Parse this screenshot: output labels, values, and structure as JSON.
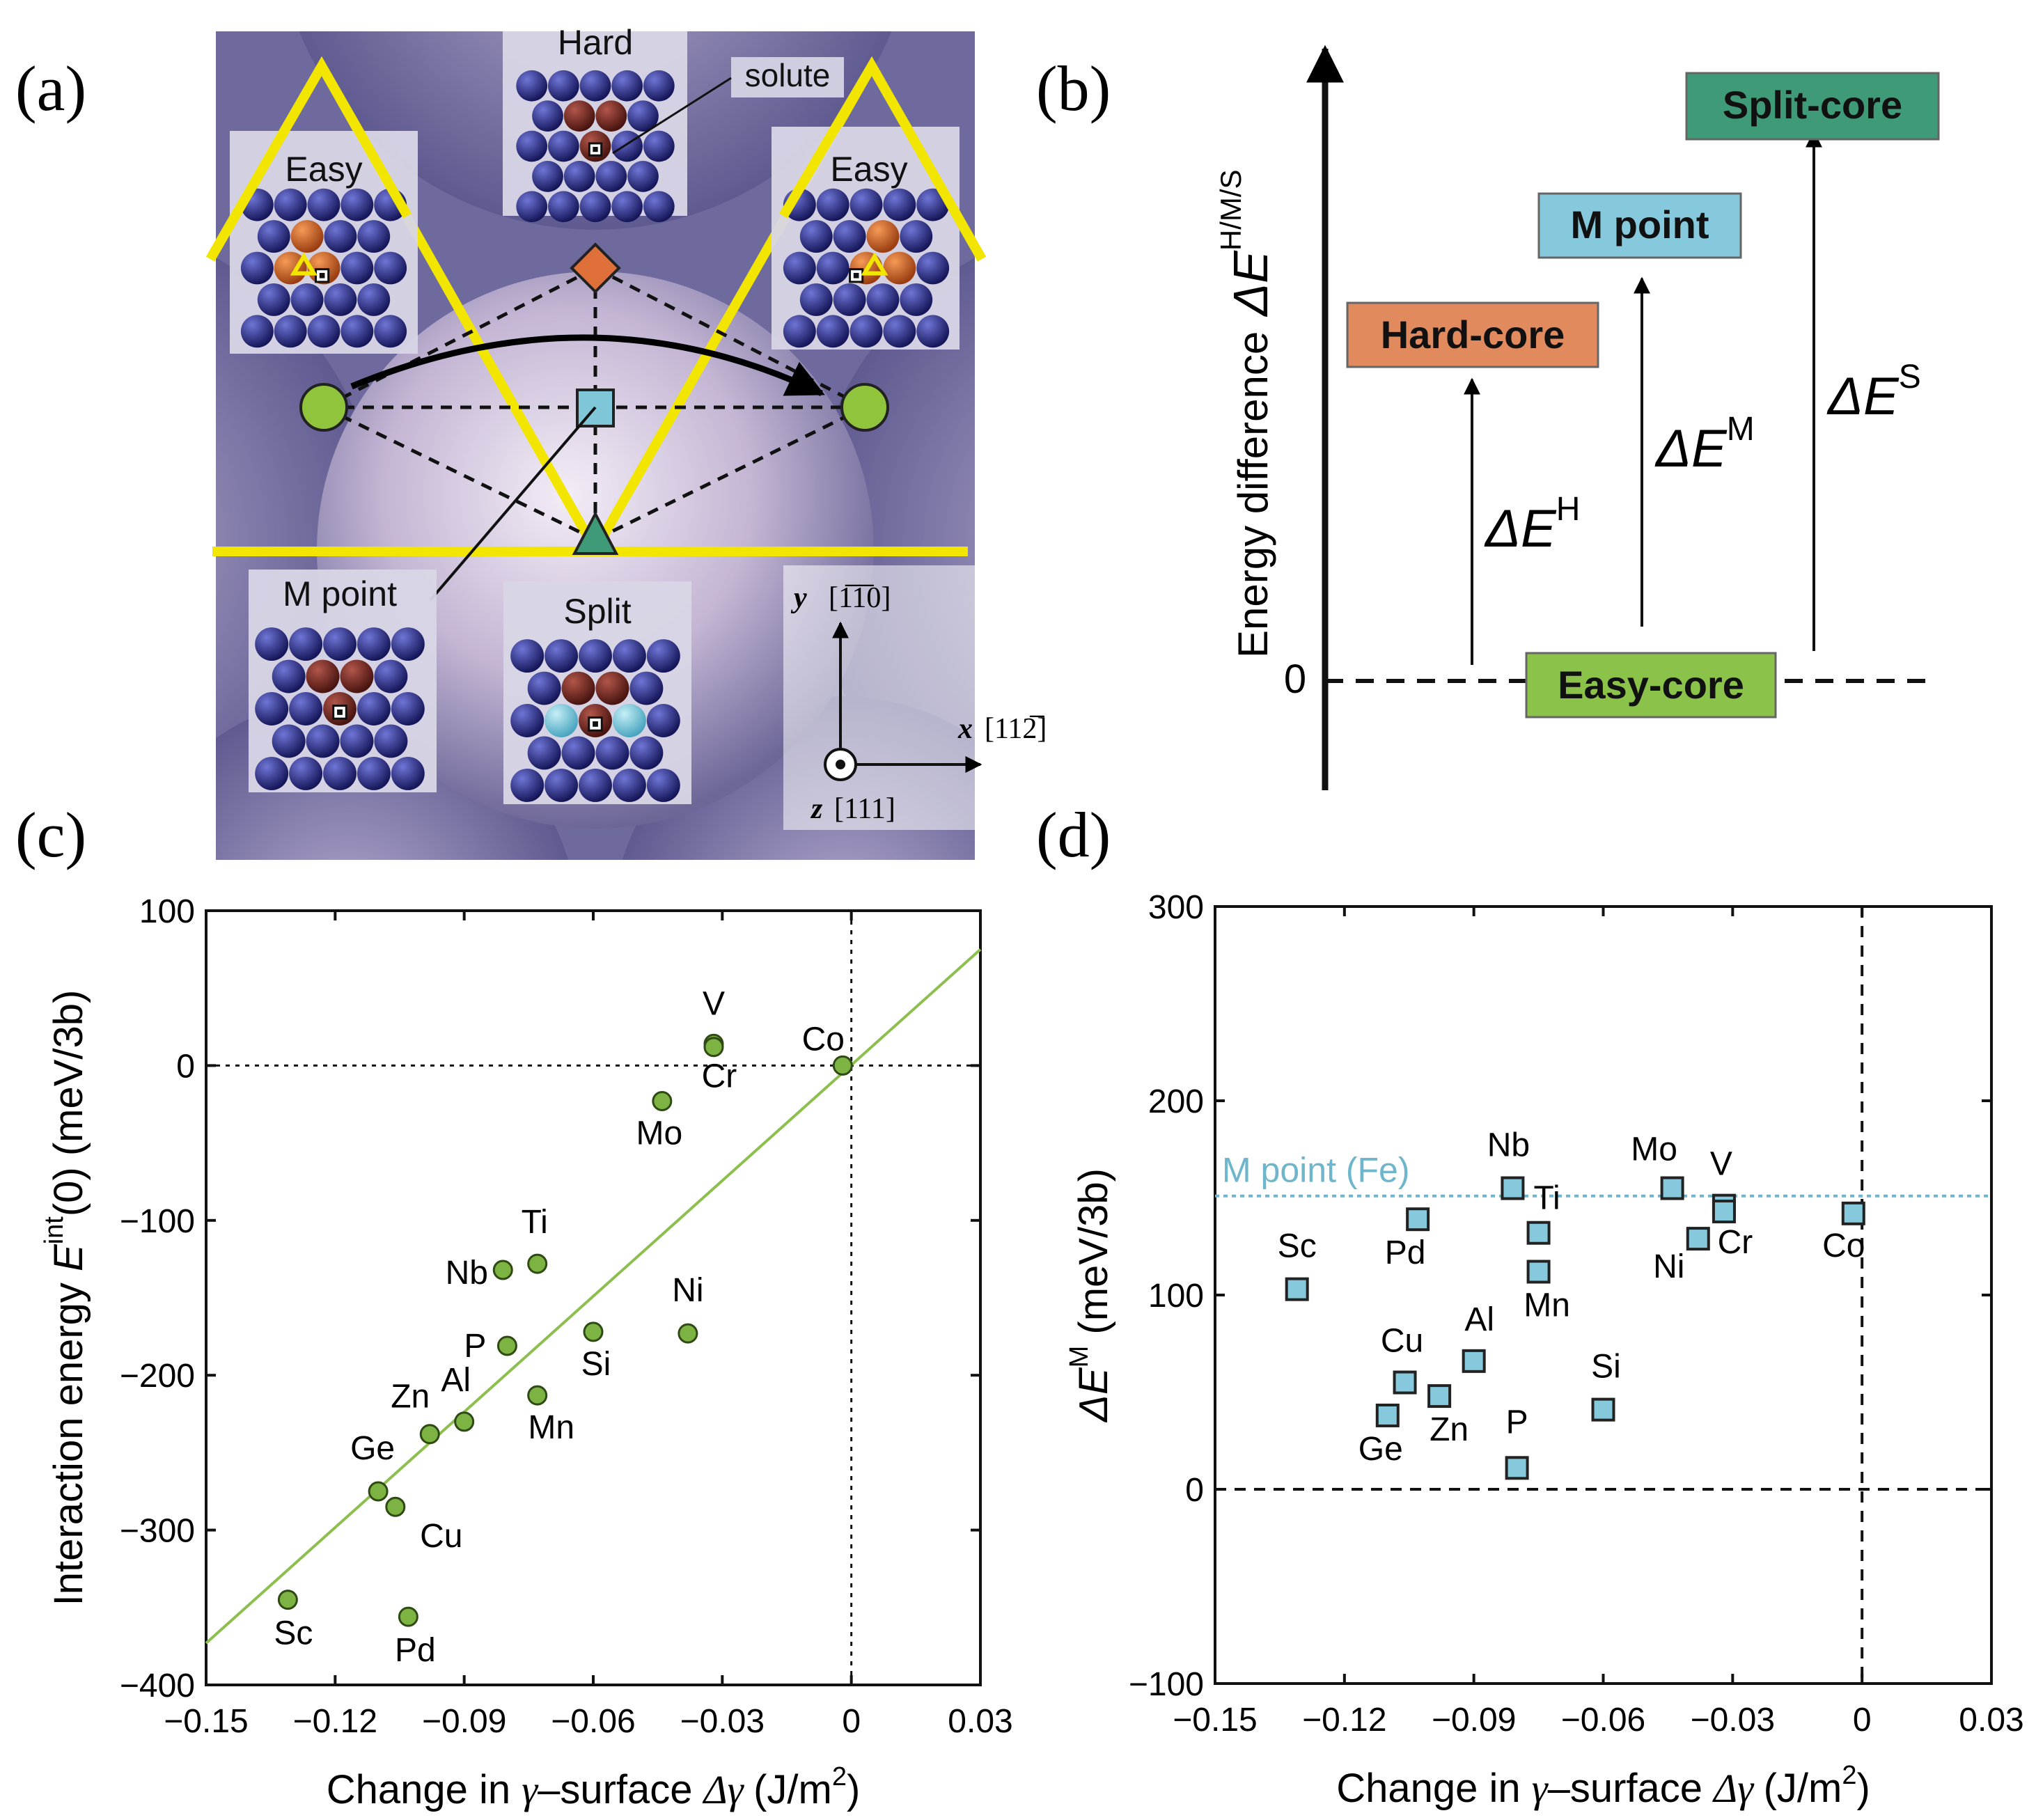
{
  "panel_labels": {
    "a": "(a)",
    "b": "(b)",
    "c": "(c)",
    "d": "(d)"
  },
  "panel_a": {
    "labels": {
      "hard": "Hard",
      "solute": "solute",
      "easy_left": "Easy",
      "easy_right": "Easy",
      "m_point": "M point",
      "split": "Split"
    },
    "axes": {
      "y": "y",
      "y_dir": "[1̅1̅0]",
      "x": "x",
      "x_dir": "[112̅]",
      "z": "z",
      "z_dir": "[111]"
    },
    "colors": {
      "background": "#6f6a9e",
      "yellow_line": "#f2e600",
      "easy_core": "#8fc43c",
      "hard_core": "#e0703a",
      "m_point": "#7ec6d8",
      "split_core": "#3f9a78",
      "atom_blue": "#2e2f86",
      "atom_brown": "#7a2a20",
      "atom_orange": "#d0662a",
      "atom_cyan": "#78cde0"
    }
  },
  "panel_b": {
    "ylabel": "Energy difference",
    "ylabel_symbol": "ΔE",
    "ylabel_sup": "H/M/S",
    "zero": "0",
    "boxes": {
      "split": "Split-core",
      "m_point": "M point",
      "hard": "Hard-core",
      "easy": "Easy-core"
    },
    "arrows": {
      "h": "ΔE",
      "h_sup": "H",
      "m": "ΔE",
      "m_sup": "M",
      "s": "ΔE",
      "s_sup": "S"
    },
    "colors": {
      "split": "#3f9a78",
      "m_point": "#86c8dc",
      "hard": "#e08a5e",
      "easy": "#8bc34a"
    }
  },
  "chart_data": [
    {
      "type": "scatter",
      "panel": "c",
      "xlabel": "Change in γ–surface  Δγ  (J/m²)",
      "ylabel": "Interaction energy  Eⁱⁿᵗ(0)  (meV/3b)",
      "ylabel_main": "Interaction energy",
      "ylabel_sym": "E",
      "ylabel_sup": "int",
      "ylabel_tail": "(0)  (meV/3b)",
      "xlabel_main": "Change in",
      "xlabel_gamma": "γ",
      "xlabel_mid": "–surface",
      "xlabel_dg": "Δγ",
      "xlabel_unit": "(J/m",
      "xlabel_unit_sup": "2",
      "xlabel_unit_end": ")",
      "xlim": [
        -0.15,
        0.03
      ],
      "ylim": [
        -400,
        100
      ],
      "xticks": [
        "−0.15",
        "−0.12",
        "−0.09",
        "−0.06",
        "−0.03",
        "0",
        "0.03"
      ],
      "yticks": [
        "100",
        "0",
        "−100",
        "−200",
        "−300",
        "−400"
      ],
      "marker_color": "#7cb342",
      "line_color": "#8dbf4f",
      "fit_line": {
        "x": [
          -0.15,
          0.03
        ],
        "y": [
          -373,
          75
        ]
      },
      "points": [
        {
          "label": "V",
          "x": -0.032,
          "y": 14
        },
        {
          "label": "Cr",
          "x": -0.032,
          "y": 12
        },
        {
          "label": "Co",
          "x": -0.002,
          "y": 0
        },
        {
          "label": "Mo",
          "x": -0.044,
          "y": -23
        },
        {
          "label": "Ti",
          "x": -0.073,
          "y": -128
        },
        {
          "label": "Nb",
          "x": -0.081,
          "y": -132
        },
        {
          "label": "Ni",
          "x": -0.038,
          "y": -173
        },
        {
          "label": "Si",
          "x": -0.06,
          "y": -172
        },
        {
          "label": "P",
          "x": -0.08,
          "y": -181
        },
        {
          "label": "Mn",
          "x": -0.073,
          "y": -213
        },
        {
          "label": "Al",
          "x": -0.09,
          "y": -230
        },
        {
          "label": "Zn",
          "x": -0.098,
          "y": -238
        },
        {
          "label": "Ge",
          "x": -0.11,
          "y": -275
        },
        {
          "label": "Cu",
          "x": -0.106,
          "y": -285
        },
        {
          "label": "Sc",
          "x": -0.131,
          "y": -345
        },
        {
          "label": "Pd",
          "x": -0.103,
          "y": -356
        }
      ]
    },
    {
      "type": "scatter",
      "panel": "d",
      "xlabel": "Change in γ–surface  Δγ  (J/m²)",
      "ylabel": "ΔEᴹ (meV/3b)",
      "ylabel_sym": "ΔE",
      "ylabel_sup": "M",
      "ylabel_tail": "(meV/3b)",
      "xlabel_main": "Change in",
      "xlabel_gamma": "γ",
      "xlabel_mid": "–surface",
      "xlabel_dg": "Δγ",
      "xlabel_unit": "(J/m",
      "xlabel_unit_sup": "2",
      "xlabel_unit_end": ")",
      "xlim": [
        -0.15,
        0.03
      ],
      "ylim": [
        -100,
        300
      ],
      "xticks": [
        "−0.15",
        "−0.12",
        "−0.09",
        "−0.06",
        "−0.03",
        "0",
        "0.03"
      ],
      "yticks": [
        "300",
        "200",
        "100",
        "0",
        "−100"
      ],
      "marker_color": "#86c8dc",
      "reference_line": {
        "label": "M point (Fe)",
        "y": 151,
        "color": "#6fb6cc"
      },
      "points": [
        {
          "label": "Nb",
          "x": -0.081,
          "y": 155
        },
        {
          "label": "Mo",
          "x": -0.044,
          "y": 155
        },
        {
          "label": "V",
          "x": -0.032,
          "y": 146
        },
        {
          "label": "Cr",
          "x": -0.032,
          "y": 143
        },
        {
          "label": "Ti",
          "x": -0.075,
          "y": 132
        },
        {
          "label": "Ni",
          "x": -0.038,
          "y": 129
        },
        {
          "label": "Co",
          "x": -0.002,
          "y": 142
        },
        {
          "label": "Pd",
          "x": -0.103,
          "y": 139
        },
        {
          "label": "Mn",
          "x": -0.075,
          "y": 112
        },
        {
          "label": "Sc",
          "x": -0.131,
          "y": 103
        },
        {
          "label": "Al",
          "x": -0.09,
          "y": 66
        },
        {
          "label": "Cu",
          "x": -0.106,
          "y": 55
        },
        {
          "label": "Zn",
          "x": -0.098,
          "y": 48
        },
        {
          "label": "Ge",
          "x": -0.11,
          "y": 38
        },
        {
          "label": "Si",
          "x": -0.06,
          "y": 41
        },
        {
          "label": "P",
          "x": -0.08,
          "y": 11
        }
      ]
    }
  ]
}
